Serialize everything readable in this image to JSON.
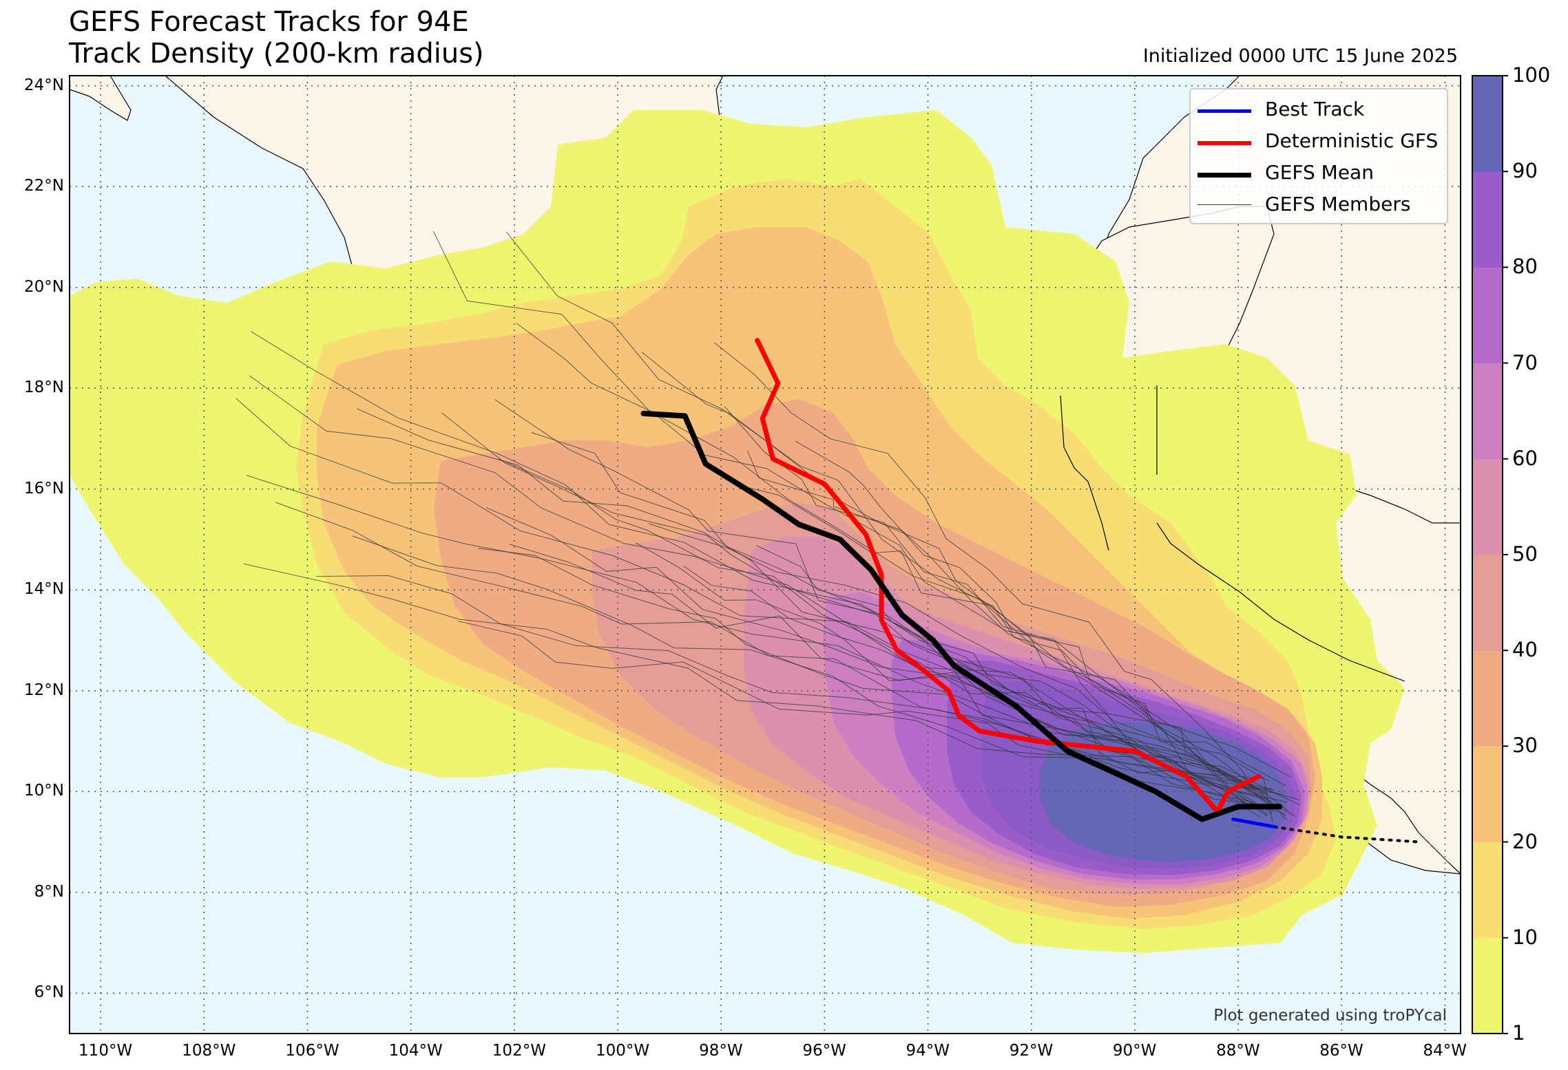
{
  "title": {
    "line1": "GEFS Forecast Tracks for 94E",
    "line2": "Track Density (200-km radius)"
  },
  "initialized": "Initialized 0000 UTC 15 June 2025",
  "credit": "Plot generated using troPYcal",
  "legend": {
    "items": [
      {
        "label": "Best Track",
        "color": "#0000ff"
      },
      {
        "label": "Deterministic GFS",
        "color": "#ff0000"
      },
      {
        "label": "GEFS Mean",
        "color": "#000000"
      },
      {
        "label": "GEFS Members",
        "color": "#333333"
      }
    ]
  },
  "axes": {
    "lat_ticks": [
      "24°N",
      "22°N",
      "20°N",
      "18°N",
      "16°N",
      "14°N",
      "12°N",
      "10°N",
      "8°N",
      "6°N"
    ],
    "lon_ticks": [
      "110°W",
      "108°W",
      "106°W",
      "104°W",
      "102°W",
      "100°W",
      "98°W",
      "96°W",
      "94°W",
      "92°W",
      "90°W",
      "88°W",
      "86°W",
      "84°W"
    ],
    "lon_range": [
      -110.6,
      -83.7
    ],
    "lat_range": [
      5.2,
      24.2
    ]
  },
  "colorbar": {
    "ticks": [
      "100",
      "90",
      "80",
      "70",
      "60",
      "50",
      "40",
      "30",
      "20",
      "10",
      "1"
    ],
    "levels": [
      1,
      10,
      20,
      30,
      40,
      50,
      60,
      70,
      80,
      90,
      100
    ],
    "colors": [
      "#eef56e",
      "#f7dd73",
      "#f6c379",
      "#efac84",
      "#e59e97",
      "#db91ad",
      "#cc80c2",
      "#b56bcb",
      "#9a5cc8",
      "#6566b5"
    ]
  },
  "colors": {
    "ocean": "#e8f8fd",
    "land": "#fbf5ea",
    "grid": "#555555"
  },
  "map": {
    "best_track": [
      [
        -88.1,
        9.45
      ],
      [
        -87.3,
        9.3
      ]
    ],
    "best_track_forecast": [
      [
        -87.3,
        9.3
      ],
      [
        -86.0,
        9.1
      ],
      [
        -84.5,
        9.0
      ]
    ],
    "deterministic_gfs": [
      [
        -97.3,
        18.95
      ],
      [
        -96.9,
        18.1
      ],
      [
        -97.2,
        17.4
      ],
      [
        -97.0,
        16.6
      ],
      [
        -96.0,
        16.1
      ],
      [
        -95.2,
        15.1
      ],
      [
        -94.9,
        14.3
      ],
      [
        -94.9,
        13.4
      ],
      [
        -94.6,
        12.8
      ],
      [
        -94.2,
        12.5
      ],
      [
        -93.6,
        12.0
      ],
      [
        -93.4,
        11.5
      ],
      [
        -93.0,
        11.2
      ],
      [
        -91.9,
        11.0
      ],
      [
        -90.0,
        10.8
      ],
      [
        -89.0,
        10.3
      ],
      [
        -88.4,
        9.6
      ],
      [
        -88.2,
        10.0
      ],
      [
        -87.6,
        10.3
      ]
    ],
    "gefs_mean": [
      [
        -99.5,
        17.5
      ],
      [
        -98.7,
        17.45
      ],
      [
        -98.3,
        16.5
      ],
      [
        -97.2,
        15.8
      ],
      [
        -96.5,
        15.3
      ],
      [
        -95.7,
        15.0
      ],
      [
        -95.1,
        14.4
      ],
      [
        -94.5,
        13.5
      ],
      [
        -93.9,
        13.0
      ],
      [
        -93.5,
        12.5
      ],
      [
        -92.3,
        11.7
      ],
      [
        -91.3,
        10.8
      ],
      [
        -89.6,
        10.0
      ],
      [
        -88.7,
        9.45
      ],
      [
        -88.0,
        9.7
      ],
      [
        -87.2,
        9.7
      ]
    ]
  }
}
